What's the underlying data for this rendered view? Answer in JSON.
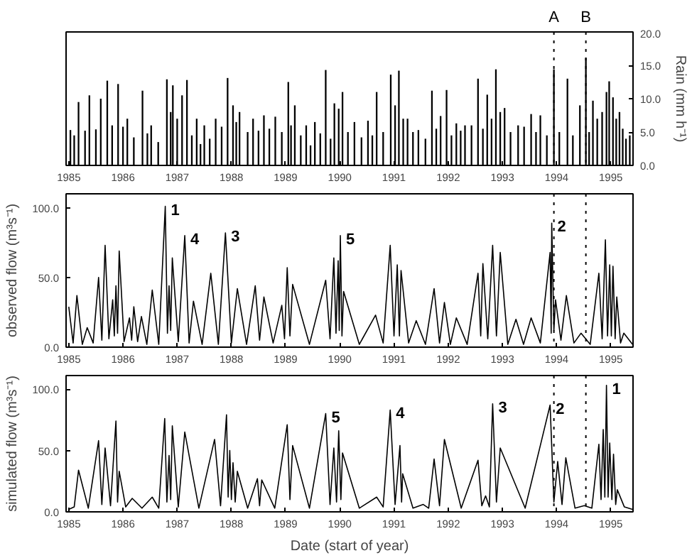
{
  "chart_data": [
    {
      "type": "bar",
      "y2label": "Rain (mm h⁻¹)",
      "xlim": [
        1984.95,
        1995.41
      ],
      "xticks": [
        1985,
        1986,
        1987,
        1988,
        1989,
        1990,
        1991,
        1992,
        1993,
        1994,
        1995
      ],
      "y2lim": [
        0,
        20
      ],
      "y2ticks": [
        {
          "value": 0,
          "label": "0.0"
        },
        {
          "value": 5,
          "label": "5.0"
        },
        {
          "value": 10,
          "label": "10.0"
        },
        {
          "value": 15,
          "label": "15.0"
        },
        {
          "value": 20,
          "label": "20.0"
        }
      ],
      "x": [
        1985.03,
        1985.1,
        1985.18,
        1985.3,
        1985.38,
        1985.5,
        1985.59,
        1985.71,
        1985.8,
        1985.91,
        1986.0,
        1986.08,
        1986.2,
        1986.36,
        1986.45,
        1986.52,
        1986.65,
        1986.81,
        1986.88,
        1986.92,
        1987.0,
        1987.09,
        1987.18,
        1987.27,
        1987.36,
        1987.43,
        1987.5,
        1987.6,
        1987.71,
        1987.82,
        1987.93,
        1988.03,
        1988.09,
        1988.15,
        1988.3,
        1988.4,
        1988.5,
        1988.6,
        1988.7,
        1988.81,
        1988.93,
        1989.05,
        1989.1,
        1989.17,
        1989.28,
        1989.38,
        1989.46,
        1989.54,
        1989.64,
        1989.74,
        1989.83,
        1989.9,
        1989.98,
        1990.05,
        1990.15,
        1990.27,
        1990.4,
        1990.52,
        1990.6,
        1990.68,
        1990.8,
        1990.94,
        1991.02,
        1991.09,
        1991.17,
        1991.25,
        1991.35,
        1991.45,
        1991.58,
        1991.7,
        1991.78,
        1991.86,
        1991.97,
        1992.06,
        1992.15,
        1992.23,
        1992.31,
        1992.43,
        1992.55,
        1992.64,
        1992.72,
        1992.8,
        1992.88,
        1992.96,
        1993.04,
        1993.15,
        1993.29,
        1993.4,
        1993.53,
        1993.62,
        1993.7,
        1993.82,
        1993.95,
        1994.05,
        1994.2,
        1994.3,
        1994.43,
        1994.54,
        1994.6,
        1994.67,
        1994.75,
        1994.84,
        1994.92,
        1994.97,
        1995.04,
        1995.1,
        1995.16,
        1995.22,
        1995.28,
        1995.35
      ],
      "series": [
        {
          "color": "#000000",
          "axis": "y2",
          "values": [
            5.3,
            4.5,
            9.5,
            5.2,
            10.5,
            5.4,
            10,
            12.7,
            6,
            12.2,
            5.8,
            7,
            4.2,
            11.2,
            4.8,
            6,
            3.5,
            12.9,
            8,
            12,
            7,
            10.5,
            12.8,
            4.5,
            7,
            3.2,
            6,
            4,
            7,
            5.8,
            13.1,
            9,
            6.5,
            8,
            5,
            7,
            5.2,
            7.5,
            5.5,
            7.3,
            5,
            12.5,
            6,
            9,
            4.5,
            6,
            3,
            6.5,
            4.8,
            14.3,
            4,
            9.3,
            8.5,
            11,
            5,
            6.5,
            4.2,
            6.7,
            4.5,
            11,
            5,
            13.6,
            9,
            14.2,
            7,
            7,
            5,
            5.3,
            4,
            11.2,
            5.5,
            7.4,
            11.3,
            4.5,
            6.3,
            5.2,
            6,
            6,
            13,
            5.5,
            10.6,
            7,
            14.4,
            8,
            8.6,
            5,
            6,
            5.8,
            7.7,
            5,
            7.5,
            4.5,
            14.4,
            5,
            13,
            4.5,
            9,
            16.1,
            5,
            9.7,
            7,
            8,
            11,
            12.6,
            10.2,
            7,
            8,
            5.5,
            4,
            4.5
          ]
        }
      ],
      "ref_lines": [
        {
          "axis": "x",
          "value": 1993.95,
          "label": "A",
          "line_style": "dotted"
        },
        {
          "axis": "x",
          "value": 1994.54,
          "label": "B",
          "line_style": "dotted"
        }
      ]
    },
    {
      "type": "line",
      "ylabel": "observed flow (m³s⁻¹)",
      "xlim": [
        1984.95,
        1995.41
      ],
      "xticks": [
        1985,
        1986,
        1987,
        1988,
        1989,
        1990,
        1991,
        1992,
        1993,
        1994,
        1995
      ],
      "ylim": [
        0,
        110
      ],
      "yticks": [
        {
          "value": 0,
          "label": "0.0"
        },
        {
          "value": 50,
          "label": "50.0"
        },
        {
          "value": 100,
          "label": "100.0"
        }
      ],
      "x": [
        1985.0,
        1985.08,
        1985.15,
        1985.25,
        1985.34,
        1985.45,
        1985.55,
        1985.61,
        1985.67,
        1985.74,
        1985.81,
        1985.84,
        1985.87,
        1985.9,
        1985.93,
        1986.02,
        1986.12,
        1986.16,
        1986.2,
        1986.27,
        1986.34,
        1986.44,
        1986.54,
        1986.66,
        1986.78,
        1986.82,
        1986.85,
        1986.88,
        1986.91,
        1987.02,
        1987.14,
        1987.22,
        1987.3,
        1987.46,
        1987.62,
        1987.76,
        1987.89,
        1988.0,
        1988.11,
        1988.28,
        1988.44,
        1988.52,
        1988.6,
        1988.77,
        1988.93,
        1988.98,
        1989.03,
        1989.08,
        1989.13,
        1989.44,
        1989.74,
        1989.82,
        1989.89,
        1989.93,
        1989.97,
        1989.99,
        1990.01,
        1990.04,
        1990.07,
        1990.36,
        1990.66,
        1990.8,
        1990.93,
        1991.0,
        1991.06,
        1991.1,
        1991.13,
        1991.27,
        1991.41,
        1991.58,
        1991.74,
        1991.84,
        1991.93,
        1992.04,
        1992.15,
        1992.35,
        1992.55,
        1992.6,
        1992.64,
        1992.73,
        1992.82,
        1992.89,
        1992.96,
        1993.1,
        1993.25,
        1993.39,
        1993.53,
        1993.7,
        1993.88,
        1993.9,
        1993.91,
        1993.95,
        1993.98,
        1994.08,
        1994.18,
        1994.32,
        1994.45,
        1994.62,
        1994.78,
        1994.84,
        1994.9,
        1994.94,
        1994.98,
        1995.01,
        1995.04,
        1995.08,
        1995.11,
        1995.18,
        1995.24,
        1995.4
      ],
      "series": [
        {
          "color": "#000000",
          "values": [
            29,
            3,
            37,
            2,
            14,
            3,
            50,
            5,
            73,
            6,
            34,
            8,
            44,
            10,
            69,
            4,
            21,
            5,
            29,
            4,
            22,
            2,
            41,
            2,
            101,
            10,
            44,
            12,
            64,
            4,
            80,
            3,
            33,
            2,
            53,
            2,
            82,
            3,
            42,
            2,
            44,
            5,
            36,
            3,
            30,
            6,
            57,
            8,
            45,
            2,
            48,
            6,
            64,
            10,
            62,
            12,
            80,
            8,
            40,
            2,
            23,
            3,
            73,
            8,
            59,
            8,
            55,
            3,
            19,
            2,
            42,
            3,
            32,
            2,
            21,
            2,
            53,
            8,
            60,
            6,
            73,
            8,
            68,
            2,
            20,
            2,
            21,
            3,
            68,
            10,
            89,
            12,
            34,
            5,
            37,
            3,
            10,
            2,
            53,
            6,
            77,
            8,
            59,
            8,
            58,
            6,
            36,
            3,
            10,
            2
          ]
        }
      ],
      "annotations": [
        {
          "text": "1",
          "x": 1986.78,
          "y": 101
        },
        {
          "text": "4",
          "x": 1987.14,
          "y": 80
        },
        {
          "text": "3",
          "x": 1987.89,
          "y": 82
        },
        {
          "text": "5",
          "x": 1990.01,
          "y": 80
        },
        {
          "text": "2",
          "x": 1993.91,
          "y": 89
        }
      ],
      "ref_lines": [
        {
          "axis": "x",
          "value": 1993.95,
          "line_style": "dotted"
        },
        {
          "axis": "x",
          "value": 1994.54,
          "line_style": "dotted"
        }
      ]
    },
    {
      "type": "line",
      "xlabel": "Date (start of year)",
      "ylabel": "simulated flow (m³s⁻¹)",
      "xlim": [
        1984.95,
        1995.41
      ],
      "xticks": [
        1985,
        1986,
        1987,
        1988,
        1989,
        1990,
        1991,
        1992,
        1993,
        1994,
        1995
      ],
      "ylim": [
        0,
        111
      ],
      "yticks": [
        {
          "value": 0,
          "label": "0.0"
        },
        {
          "value": 50,
          "label": "50.0"
        },
        {
          "value": 100,
          "label": "100.0"
        }
      ],
      "x": [
        1985.0,
        1985.1,
        1985.18,
        1985.36,
        1985.55,
        1985.61,
        1985.67,
        1985.77,
        1985.87,
        1985.9,
        1985.93,
        1986.05,
        1986.17,
        1986.35,
        1986.54,
        1986.66,
        1986.77,
        1986.81,
        1986.85,
        1986.88,
        1986.91,
        1987.02,
        1987.14,
        1987.4,
        1987.69,
        1987.8,
        1987.91,
        1987.94,
        1987.97,
        1988.0,
        1988.03,
        1988.07,
        1988.11,
        1988.3,
        1988.48,
        1988.52,
        1988.56,
        1988.8,
        1989.03,
        1989.08,
        1989.13,
        1989.44,
        1989.74,
        1989.82,
        1989.89,
        1989.94,
        1989.98,
        1990.02,
        1990.05,
        1990.36,
        1990.68,
        1990.8,
        1990.93,
        1991.02,
        1991.11,
        1991.14,
        1991.16,
        1991.35,
        1991.54,
        1991.64,
        1991.74,
        1991.84,
        1991.93,
        1992.24,
        1992.55,
        1992.62,
        1992.69,
        1992.76,
        1992.82,
        1992.89,
        1992.96,
        1993.42,
        1993.88,
        1993.95,
        1994.02,
        1994.1,
        1994.17,
        1994.34,
        1994.51,
        1994.65,
        1994.78,
        1994.82,
        1994.86,
        1994.89,
        1994.92,
        1994.95,
        1994.98,
        1995.02,
        1995.05,
        1995.09,
        1995.12,
        1995.25,
        1995.4
      ],
      "series": [
        {
          "color": "#000000",
          "values": [
            2,
            4,
            34,
            3,
            58,
            6,
            52,
            5,
            74,
            8,
            33,
            4,
            11,
            3,
            12,
            3,
            76,
            8,
            46,
            10,
            70,
            4,
            65,
            3,
            59,
            5,
            79,
            12,
            50,
            10,
            40,
            8,
            33,
            3,
            27,
            5,
            26,
            3,
            71,
            10,
            54,
            3,
            80,
            6,
            52,
            8,
            66,
            10,
            48,
            3,
            12,
            4,
            83,
            6,
            54,
            8,
            31,
            3,
            6,
            3,
            43,
            5,
            59,
            3,
            42,
            5,
            13,
            4,
            88,
            8,
            52,
            3,
            87,
            8,
            41,
            6,
            44,
            3,
            5,
            3,
            55,
            10,
            67,
            12,
            103,
            12,
            56,
            10,
            47,
            6,
            18,
            4,
            2
          ]
        }
      ],
      "annotations": [
        {
          "text": "5",
          "x": 1989.74,
          "y": 80
        },
        {
          "text": "4",
          "x": 1990.93,
          "y": 83
        },
        {
          "text": "3",
          "x": 1992.82,
          "y": 88
        },
        {
          "text": "2",
          "x": 1993.88,
          "y": 87
        },
        {
          "text": "1",
          "x": 1994.92,
          "y": 103
        }
      ],
      "ref_lines": [
        {
          "axis": "x",
          "value": 1993.95,
          "line_style": "dotted"
        },
        {
          "axis": "x",
          "value": 1994.54,
          "line_style": "dotted"
        }
      ]
    }
  ]
}
